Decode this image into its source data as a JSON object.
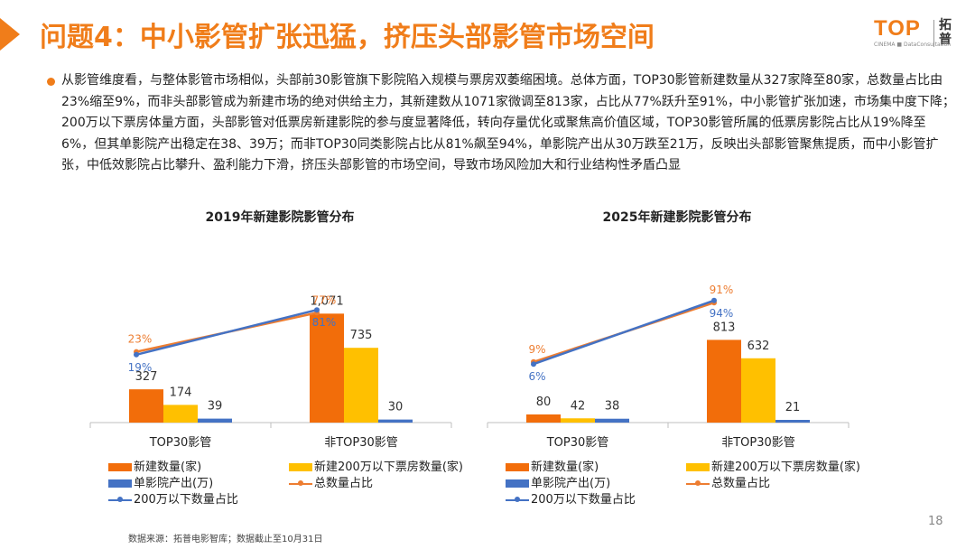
{
  "header": {
    "title": "问题4：中小影管扩张迅猛，挤压头部影管市场空间",
    "logo_text": "TOP",
    "logo_cn": "拓普",
    "logo_sub": "CINEMA ■ DataConsultation"
  },
  "bullet": "从影管维度看，与整体影管市场相似，头部前30影管旗下影院陷入规模与票房双萎缩困境。总体方面，TOP30影管新建数量从327家降至80家，总数量占比由23%缩至9%，而非头部影管成为新建市场的绝对供给主力，其新建数从1071家微调至813家，占比从77%跃升至91%，中小影管扩张加速，市场集中度下降；200万以下票房体量方面，头部影管对低票房新建影院的参与度显著降低，转向存量优化或聚焦高价值区域，TOP30影管所属的低票房影院占比从19%降至6%，但其单影院产出稳定在38、39万；而非TOP30同类影院占比从81%飙至94%，单影院产出从30万跌至21万，反映出头部影管聚焦提质，而中小影管扩张，中低效影院占比攀升、盈利能力下滑，挤压头部影管的市场空间，导致市场风险加大和行业结构性矛盾凸显",
  "colors": {
    "accent": "#f07d1a",
    "bar1": "#f26d0a",
    "bar2": "#ffc000",
    "bar3": "#4472c4",
    "line_total": "#ed7d31",
    "line_low": "#4472c4"
  },
  "chart_data": [
    {
      "type": "bar",
      "title": "2019年新建影院影管分布",
      "categories": [
        "TOP30影管",
        "非TOP30影管"
      ],
      "series": [
        {
          "name": "新建数量(家)",
          "values": [
            327,
            1071
          ],
          "labels": [
            "327",
            "1,071"
          ]
        },
        {
          "name": "新建200万以下票房数量(家)",
          "values": [
            174,
            735
          ],
          "labels": [
            "174",
            "735"
          ]
        },
        {
          "name": "单影院产出(万)",
          "values": [
            39,
            30
          ],
          "labels": [
            "39",
            "30"
          ]
        }
      ],
      "lines": [
        {
          "name": "总数量占比",
          "values": [
            23,
            77
          ],
          "labels": [
            "23%",
            "77%"
          ]
        },
        {
          "name": "200万以下数量占比",
          "values": [
            19,
            81
          ],
          "labels": [
            "19%",
            "81%"
          ]
        }
      ]
    },
    {
      "type": "bar",
      "title": "2025年新建影院影管分布",
      "categories": [
        "TOP30影管",
        "非TOP30影管"
      ],
      "series": [
        {
          "name": "新建数量(家)",
          "values": [
            80,
            813
          ],
          "labels": [
            "80",
            "813"
          ]
        },
        {
          "name": "新建200万以下票房数量(家)",
          "values": [
            42,
            632
          ],
          "labels": [
            "42",
            "632"
          ]
        },
        {
          "name": "单影院产出(万)",
          "values": [
            38,
            21
          ],
          "labels": [
            "38",
            "21"
          ]
        }
      ],
      "lines": [
        {
          "name": "总数量占比",
          "values": [
            9,
            91
          ],
          "labels": [
            "9%",
            "91%"
          ]
        },
        {
          "name": "200万以下数量占比",
          "values": [
            6,
            94
          ],
          "labels": [
            "6%",
            "94%"
          ]
        }
      ]
    }
  ],
  "footer": {
    "source": "数据来源：拓普电影智库；数据截止至10月31日",
    "page_number": "18"
  }
}
